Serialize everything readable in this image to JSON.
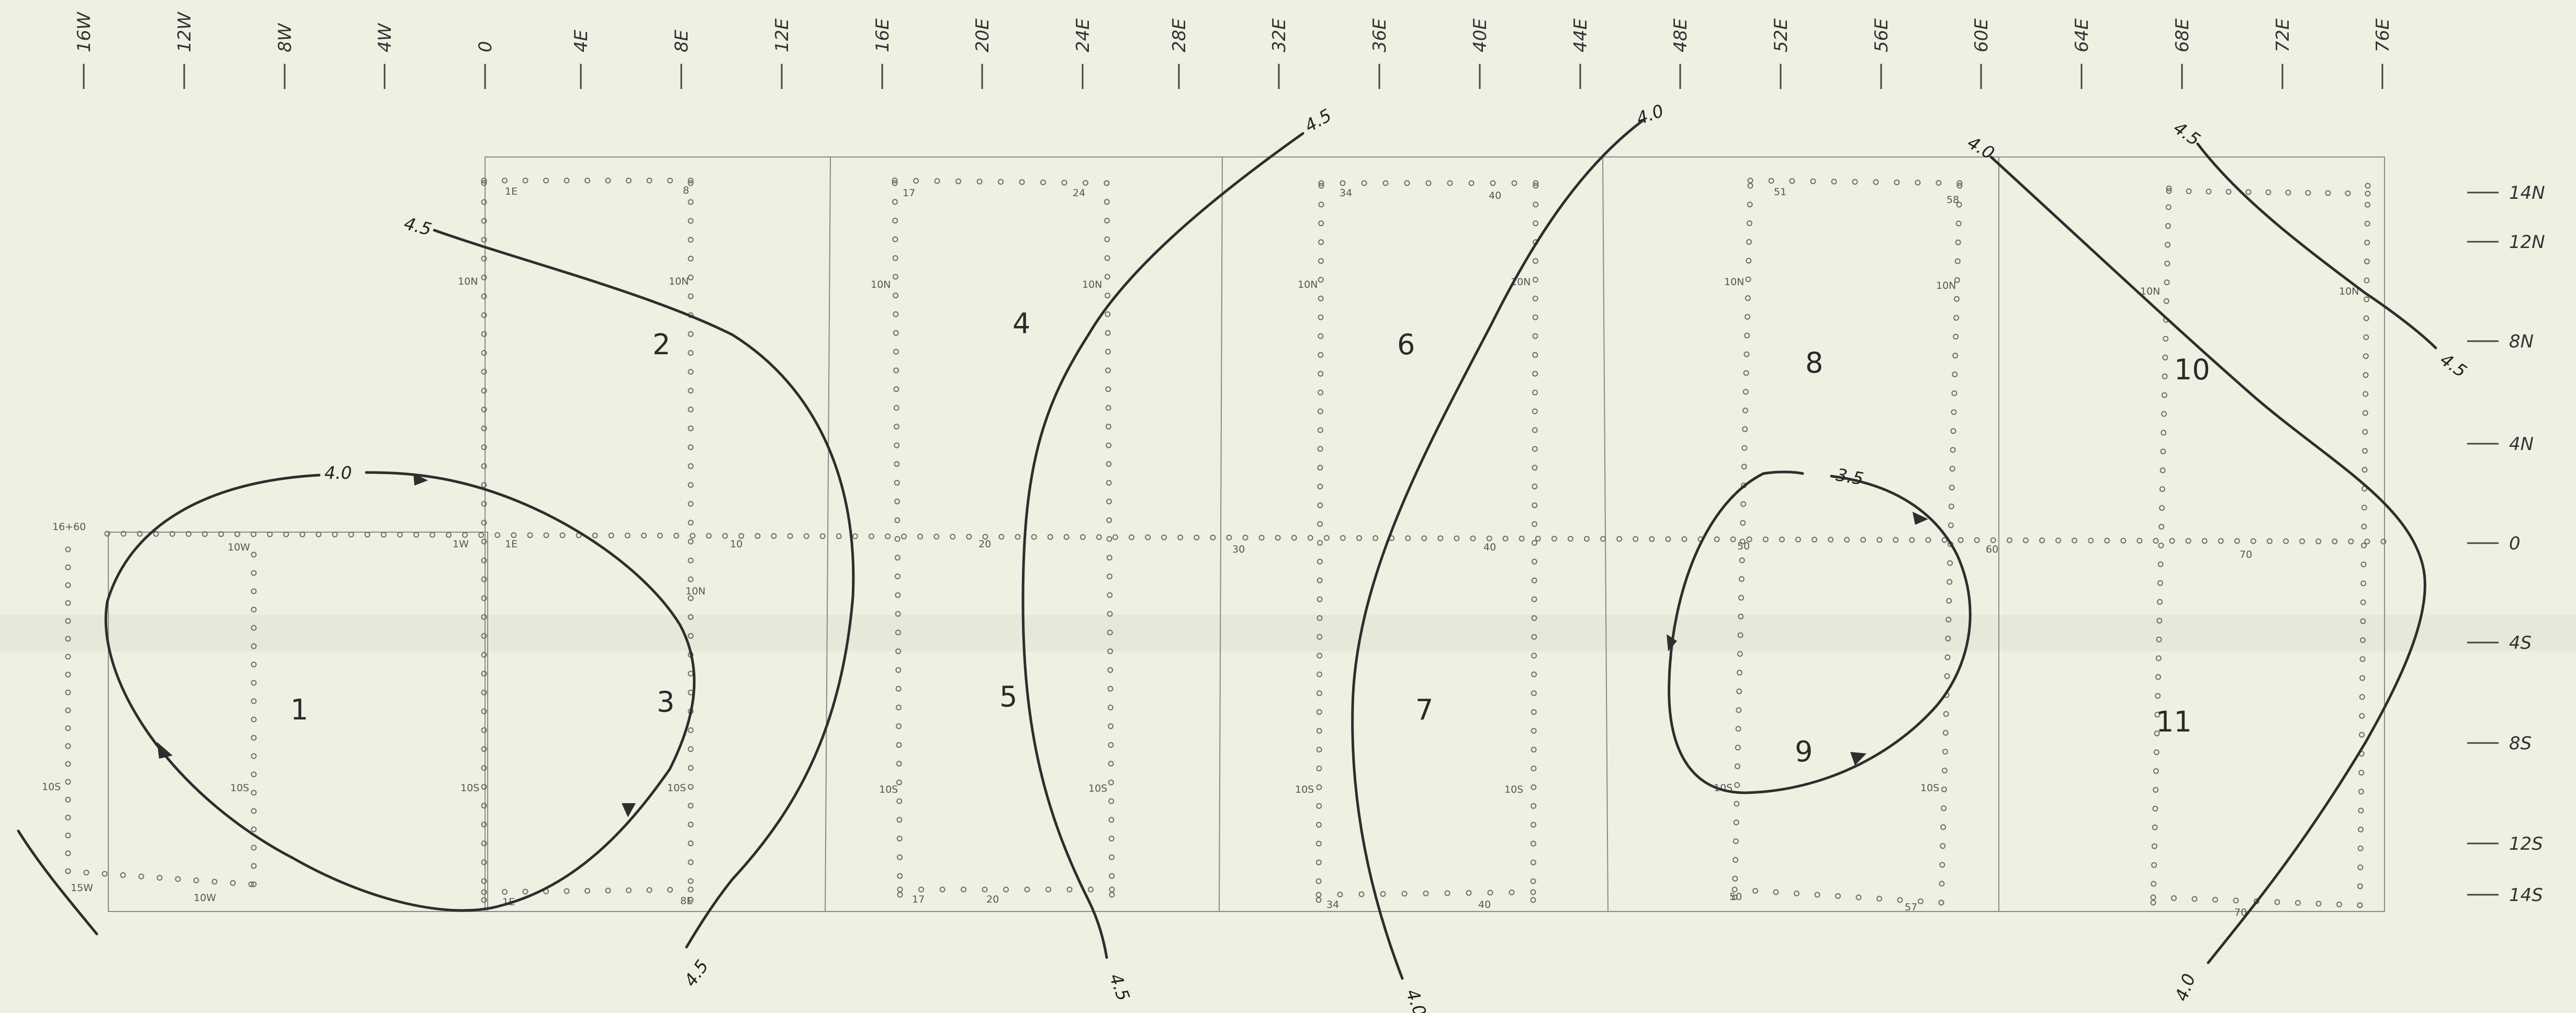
{
  "map": {
    "longitude_labels": [
      "16W",
      "12W",
      "8W",
      "4W",
      "0",
      "4E",
      "8E",
      "12E",
      "16E",
      "20E",
      "24E",
      "28E",
      "32E",
      "36E",
      "40E",
      "44E",
      "48E",
      "52E",
      "56E",
      "60E",
      "64E",
      "68E",
      "72E",
      "76E"
    ],
    "latitude_labels": [
      "14N",
      "12N",
      "8N",
      "4N",
      "0",
      "4S",
      "8S",
      "12S",
      "14S"
    ],
    "region_labels": [
      "1",
      "2",
      "3",
      "4",
      "5",
      "6",
      "7",
      "8",
      "9",
      "10",
      "11"
    ],
    "contour_labels": [
      "4.0",
      "4.5",
      "4.5",
      "4.5",
      "4.5",
      "4.0",
      "4.0",
      "4.0",
      "3.5",
      "4.0",
      "4.5",
      "4.5",
      "4.0"
    ],
    "grid_labels": [
      "16+60",
      "10W",
      "1W",
      "1E",
      "10",
      "20",
      "30",
      "40",
      "50",
      "60",
      "70",
      "1E",
      "8",
      "17",
      "24",
      "34",
      "40",
      "51",
      "58",
      "10N",
      "10N",
      "10N",
      "10N",
      "10N",
      "10N",
      "10N",
      "10N",
      "10N",
      "10N",
      "10N",
      "10S",
      "10S",
      "10S",
      "10S",
      "10S",
      "10S",
      "10S",
      "10S",
      "10S",
      "10S",
      "15W",
      "10W",
      "1E",
      "8E",
      "17",
      "20",
      "34",
      "40",
      "50",
      "57",
      "70"
    ],
    "colors": {
      "background": "#eef0e2",
      "contour": "#2e2e2e",
      "grid": "#8a8a86",
      "dots": "#6e6e6a"
    }
  }
}
